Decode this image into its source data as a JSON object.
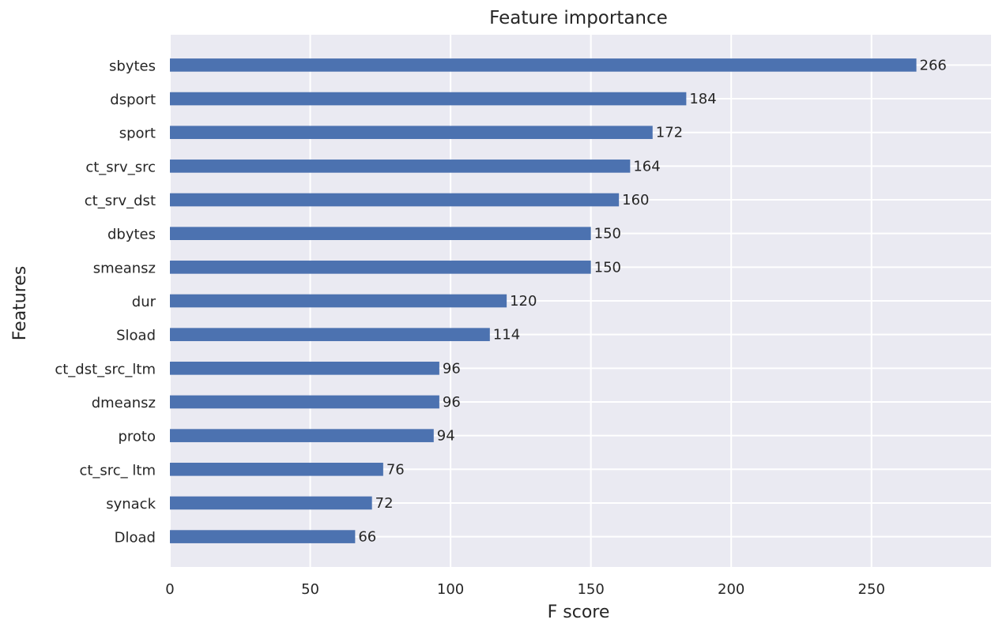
{
  "chart_data": {
    "type": "bar",
    "orientation": "horizontal",
    "title": "Feature importance",
    "xlabel": "F score",
    "ylabel": "Features",
    "categories": [
      "sbytes",
      "dsport",
      "sport",
      "ct_srv_src",
      "ct_srv_dst",
      "dbytes",
      "smeansz",
      "dur",
      "Sload",
      "ct_dst_src_ltm",
      "dmeansz",
      "proto",
      "ct_src_ ltm",
      "synack",
      "Dload"
    ],
    "values": [
      266,
      184,
      172,
      164,
      160,
      150,
      150,
      120,
      114,
      96,
      96,
      94,
      76,
      72,
      66
    ],
    "data_labels": [
      "266",
      "184",
      "172",
      "164",
      "160",
      "150",
      "150",
      "120",
      "114",
      "96",
      "96",
      "94",
      "76",
      "72",
      "66"
    ],
    "xlim": [
      0,
      292.6
    ],
    "xticks": [
      0,
      50,
      100,
      150,
      200,
      250
    ],
    "xtick_labels": [
      "0",
      "50",
      "100",
      "150",
      "200",
      "250"
    ],
    "grid": true,
    "colors": {
      "bar": "#4c72b0",
      "plot_background": "#eaeaf2",
      "grid": "#ffffff",
      "text": "#262626"
    }
  }
}
